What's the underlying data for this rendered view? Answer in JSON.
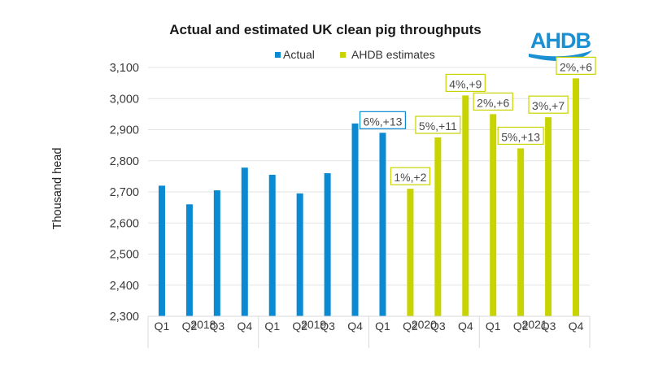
{
  "logo": {
    "text": "AHDB",
    "color": "#1a8fd1"
  },
  "colors": {
    "actual": "#0a8ad2",
    "estimate": "#c8d400",
    "grid": "#e3e3e3",
    "axis": "#d9d9d9"
  },
  "chart_data": {
    "type": "bar",
    "title": "Actual and estimated UK clean pig throughputs",
    "xlabel": "",
    "ylabel": "Thousand head",
    "ylim": [
      2300,
      3100
    ],
    "yticks": [
      2300,
      2400,
      2500,
      2600,
      2700,
      2800,
      2900,
      3000,
      3100
    ],
    "ytick_labels": [
      "2,300",
      "2,400",
      "2,500",
      "2,600",
      "2,700",
      "2,800",
      "2,900",
      "3,000",
      "3,100"
    ],
    "grid": true,
    "legend": {
      "placement": "top-center",
      "entries": [
        "Actual",
        "AHDB estimates"
      ]
    },
    "groups": [
      {
        "label": "2018",
        "quarters": [
          "Q1",
          "Q2",
          "Q3",
          "Q4"
        ]
      },
      {
        "label": "2019",
        "quarters": [
          "Q1",
          "Q2",
          "Q3",
          "Q4"
        ]
      },
      {
        "label": "2020",
        "quarters": [
          "Q1",
          "Q2",
          "Q3",
          "Q4"
        ]
      },
      {
        "label": "2021",
        "quarters": [
          "Q1",
          "Q2",
          "Q3",
          "Q4"
        ]
      }
    ],
    "categories": [
      "2018 Q1",
      "2018 Q2",
      "2018 Q3",
      "2018 Q4",
      "2019 Q1",
      "2019 Q2",
      "2019 Q3",
      "2019 Q4",
      "2020 Q1",
      "2020 Q2",
      "2020 Q3",
      "2020 Q4",
      "2021 Q1",
      "2021 Q2",
      "2021 Q3",
      "2021 Q4"
    ],
    "series": [
      {
        "name": "Actual",
        "values": [
          2720,
          2660,
          2705,
          2778,
          2755,
          2695,
          2760,
          2920,
          2890,
          null,
          null,
          null,
          null,
          null,
          null,
          null
        ]
      },
      {
        "name": "AHDB estimates",
        "values": [
          null,
          null,
          null,
          null,
          null,
          null,
          null,
          null,
          null,
          2710,
          2875,
          3010,
          2950,
          2840,
          2940,
          3065
        ]
      }
    ],
    "annotations": [
      {
        "category": "2020 Q1",
        "series": "Actual",
        "text": "6%,+13"
      },
      {
        "category": "2020 Q2",
        "series": "AHDB estimates",
        "text": "1%,+2"
      },
      {
        "category": "2020 Q3",
        "series": "AHDB estimates",
        "text": "5%,+11"
      },
      {
        "category": "2020 Q4",
        "series": "AHDB estimates",
        "text": "4%,+9"
      },
      {
        "category": "2021 Q1",
        "series": "AHDB estimates",
        "text": "2%,+6"
      },
      {
        "category": "2021 Q2",
        "series": "AHDB estimates",
        "text": "5%,+13"
      },
      {
        "category": "2021 Q3",
        "series": "AHDB estimates",
        "text": "3%,+7"
      },
      {
        "category": "2021 Q4",
        "series": "AHDB estimates",
        "text": "2%,+6"
      }
    ]
  }
}
